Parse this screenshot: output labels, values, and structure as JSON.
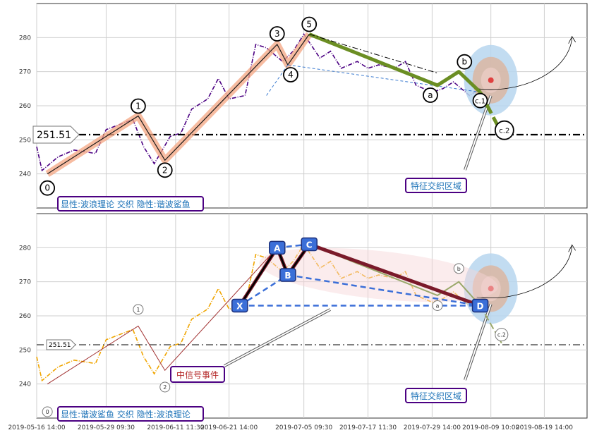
{
  "chart_data": [
    {
      "type": "line",
      "panel": "top",
      "ylim": [
        230,
        290
      ],
      "yticks": [
        240,
        250,
        260,
        270,
        280
      ],
      "grid": true,
      "series": [
        {
          "kind": "price",
          "color": "#4b0082",
          "x": [
            "2019-05-16",
            "2019-05-17",
            "2019-05-20",
            "2019-05-23",
            "2019-05-27",
            "2019-05-29",
            "2019-06-03",
            "2019-06-05",
            "2019-06-07",
            "2019-06-10",
            "2019-06-12",
            "2019-06-14",
            "2019-06-17",
            "2019-06-19",
            "2019-06-21",
            "2019-06-24",
            "2019-06-26",
            "2019-06-28",
            "2019-07-01",
            "2019-07-03",
            "2019-07-05",
            "2019-07-08",
            "2019-07-10",
            "2019-07-12",
            "2019-07-15",
            "2019-07-17",
            "2019-07-19",
            "2019-07-22",
            "2019-07-24",
            "2019-07-26",
            "2019-07-29",
            "2019-07-31",
            "2019-08-02",
            "2019-08-05",
            "2019-08-07"
          ],
          "y": [
            248,
            241,
            245,
            247,
            246,
            253,
            256,
            248,
            243,
            251,
            252,
            259,
            262,
            268,
            262,
            263,
            278,
            277,
            273,
            276,
            281,
            274,
            276,
            271,
            273,
            271,
            272,
            271,
            273,
            266,
            264,
            265,
            267,
            263,
            265
          ]
        }
      ],
      "waves": {
        "points": [
          {
            "label": "0",
            "x": "2019-05-18",
            "y": 240
          },
          {
            "label": "1",
            "x": "2019-06-04",
            "y": 257
          },
          {
            "label": "2",
            "x": "2019-06-09",
            "y": 244
          },
          {
            "label": "3",
            "x": "2019-06-30",
            "y": 278
          },
          {
            "label": "4",
            "x": "2019-07-02",
            "y": 272
          },
          {
            "label": "5",
            "x": "2019-07-06",
            "y": 281
          },
          {
            "label": "a",
            "x": "2019-07-30",
            "y": 266
          },
          {
            "label": "b",
            "x": "2019-08-03",
            "y": 270
          },
          {
            "label": "c.1",
            "x": "2019-08-07",
            "y": 264
          },
          {
            "label": "c.2",
            "x": "2019-08-11",
            "y": 252
          }
        ]
      },
      "level": {
        "value": 251.51,
        "label": "251.51"
      },
      "annotations": {
        "zone_label": "特征交织区域",
        "caption": "显性:波浪理论 交织 隐性:谐波鲨鱼"
      }
    },
    {
      "type": "line",
      "panel": "bottom",
      "ylim": [
        230,
        290
      ],
      "yticks": [
        240,
        250,
        260,
        270,
        280
      ],
      "grid": true,
      "series": [
        {
          "kind": "price",
          "color": "#f0a500",
          "x": [
            "2019-05-16",
            "2019-05-17",
            "2019-05-20",
            "2019-05-23",
            "2019-05-27",
            "2019-05-29",
            "2019-06-03",
            "2019-06-05",
            "2019-06-07",
            "2019-06-10",
            "2019-06-12",
            "2019-06-14",
            "2019-06-17",
            "2019-06-19",
            "2019-06-21",
            "2019-06-24",
            "2019-06-26",
            "2019-06-28",
            "2019-07-01",
            "2019-07-03",
            "2019-07-05",
            "2019-07-08",
            "2019-07-10",
            "2019-07-12",
            "2019-07-15",
            "2019-07-17",
            "2019-07-19",
            "2019-07-22",
            "2019-07-24",
            "2019-07-26",
            "2019-07-29",
            "2019-07-31",
            "2019-08-02",
            "2019-08-05",
            "2019-08-07"
          ],
          "y": [
            248,
            241,
            245,
            247,
            246,
            253,
            256,
            248,
            243,
            251,
            252,
            259,
            262,
            268,
            262,
            263,
            278,
            277,
            273,
            276,
            281,
            274,
            276,
            271,
            273,
            271,
            272,
            271,
            273,
            266,
            264,
            265,
            267,
            263,
            265
          ]
        }
      ],
      "harmonic": {
        "points": [
          {
            "label": "X",
            "x": "2019-06-23",
            "y": 263
          },
          {
            "label": "A",
            "x": "2019-06-30",
            "y": 280
          },
          {
            "label": "B",
            "x": "2019-07-02",
            "y": 272
          },
          {
            "label": "C",
            "x": "2019-07-06",
            "y": 281
          },
          {
            "label": "D",
            "x": "2019-08-07",
            "y": 263
          }
        ]
      },
      "waves_faded": {
        "points": [
          {
            "label": "0",
            "x": "2019-05-18",
            "y": 236
          },
          {
            "label": "1",
            "x": "2019-06-04",
            "y": 259
          },
          {
            "label": "2",
            "x": "2019-06-09",
            "y": 242
          },
          {
            "label": "a",
            "x": "2019-07-30",
            "y": 263
          },
          {
            "label": "b",
            "x": "2019-08-03",
            "y": 271
          },
          {
            "label": "c.2",
            "x": "2019-08-11",
            "y": 252
          }
        ]
      },
      "level": {
        "value": 251.51,
        "label": "251.51"
      },
      "annotations": {
        "zone_label": "特征交织区域",
        "event_label": "中信号事件",
        "caption": "显性:谐波鲨鱼 交织 隐性:波浪理论"
      }
    }
  ],
  "x_axis": {
    "range": [
      "2019-05-16",
      "2019-08-27"
    ],
    "tick_labels": [
      "2019-05-16 14:00",
      "2019-05-29 09:30",
      "2019-06-11 11:30",
      "2019-06-21 14:00",
      "2019-07-05 09:30",
      "2019-07-17 11:30",
      "2019-07-29 14:00",
      "2019-08-09 10:00",
      "2019-08-19 14:00"
    ]
  },
  "colors": {
    "wave_band": "#f4a582",
    "projection": "#6b8e23",
    "harmonic_box": "#3b6fd8",
    "label_border": "#4b0082",
    "caption_text": "#1e73b8",
    "event_text": "#b22222"
  }
}
